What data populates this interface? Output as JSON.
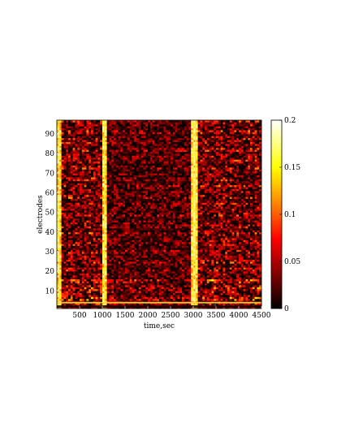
{
  "chart_data": {
    "type": "heatmap",
    "title": "",
    "xlabel": "time,sec",
    "ylabel": "electrodes",
    "xlim": [
      0,
      4500
    ],
    "ylim": [
      1,
      97
    ],
    "x_ticks": [
      500,
      1000,
      1500,
      2000,
      2500,
      3000,
      3500,
      4000,
      4500
    ],
    "x_tick_labels": [
      "500",
      "1000",
      "1500",
      "2000",
      "2500",
      "3000",
      "3500",
      "4000",
      "4500"
    ],
    "y_ticks": [
      10,
      20,
      30,
      40,
      50,
      60,
      70,
      80,
      90
    ],
    "y_tick_labels": [
      "10",
      "20",
      "30",
      "40",
      "50",
      "60",
      "70",
      "80",
      "90"
    ],
    "colorbar": {
      "range": [
        0,
        0.2
      ],
      "ticks": [
        0,
        0.05,
        0.1,
        0.15,
        0.2
      ],
      "tick_labels": [
        "0",
        "0.05",
        "0.1",
        "0.15",
        "0.2"
      ],
      "colormap": "hot",
      "colors": [
        "#000000",
        "#800000",
        "#ff0000",
        "#ff8000",
        "#ffff00",
        "#ffffff"
      ]
    },
    "features": {
      "bright_time_bands": [
        50,
        1050,
        3000,
        3050
      ],
      "dark_time_window": [
        1100,
        3000
      ],
      "bright_electrode_row": 4,
      "quiet_electrode_row": 2
    },
    "grid": false,
    "legend": "none"
  }
}
